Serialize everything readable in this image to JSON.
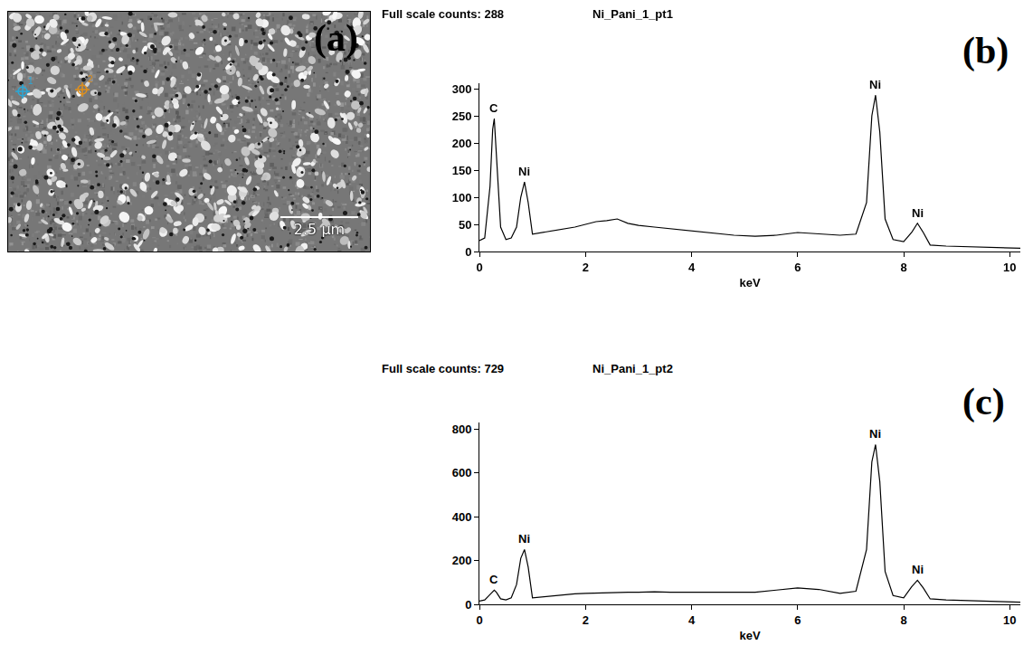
{
  "image_panel": {
    "label": "(a)",
    "scale_bar": "2.5 µm",
    "points": [
      {
        "label": "1",
        "color": "#2aa8d8"
      },
      {
        "label": "2",
        "color": "#e0901c"
      }
    ]
  },
  "chart_data": [
    {
      "type": "line",
      "panel": "(b)",
      "subtitle": "Full scale counts: 288",
      "title": "Ni_Pani_1_pt1",
      "x_label": "keV",
      "color": "#000000",
      "grid": false,
      "x": [
        0,
        0.1,
        0.2,
        0.25,
        0.28,
        0.32,
        0.4,
        0.5,
        0.6,
        0.7,
        0.78,
        0.85,
        0.92,
        1.0,
        1.2,
        1.4,
        1.6,
        1.8,
        2.0,
        2.2,
        2.4,
        2.6,
        2.8,
        3.0,
        3.3,
        3.6,
        4.0,
        4.4,
        4.8,
        5.2,
        5.6,
        6.0,
        6.4,
        6.8,
        7.1,
        7.3,
        7.4,
        7.47,
        7.55,
        7.65,
        7.8,
        8.0,
        8.15,
        8.26,
        8.37,
        8.5,
        8.8,
        9.2,
        9.6,
        10.0,
        10.2
      ],
      "values": [
        20,
        25,
        120,
        225,
        245,
        180,
        45,
        22,
        25,
        45,
        100,
        128,
        90,
        32,
        35,
        38,
        42,
        45,
        50,
        55,
        57,
        60,
        52,
        48,
        45,
        42,
        38,
        33,
        30,
        28,
        30,
        35,
        33,
        30,
        32,
        90,
        250,
        288,
        220,
        60,
        22,
        18,
        35,
        52,
        35,
        12,
        10,
        9,
        8,
        7,
        6
      ],
      "xlim": [
        0,
        10.2
      ],
      "xticks": [
        0,
        2,
        4,
        6,
        8,
        10
      ],
      "ylim": [
        0,
        310
      ],
      "yticks": [
        0,
        50,
        100,
        150,
        200,
        250,
        300
      ],
      "annotations": [
        {
          "text": "C",
          "x": 0.28,
          "y": 245
        },
        {
          "text": "Ni",
          "x": 0.85,
          "y": 128
        },
        {
          "text": "Ni",
          "x": 7.47,
          "y": 288
        },
        {
          "text": "Ni",
          "x": 8.26,
          "y": 52
        }
      ]
    },
    {
      "type": "line",
      "panel": "(c)",
      "subtitle": "Full scale counts: 729",
      "title": "Ni_Pani_1_pt2",
      "x_label": "keV",
      "color": "#000000",
      "grid": false,
      "x": [
        0,
        0.1,
        0.2,
        0.25,
        0.28,
        0.32,
        0.4,
        0.5,
        0.6,
        0.7,
        0.78,
        0.85,
        0.92,
        1.0,
        1.2,
        1.4,
        1.6,
        1.8,
        2.0,
        2.2,
        2.4,
        2.6,
        2.8,
        3.0,
        3.3,
        3.6,
        4.0,
        4.4,
        4.8,
        5.2,
        5.6,
        6.0,
        6.4,
        6.8,
        7.1,
        7.3,
        7.4,
        7.47,
        7.55,
        7.65,
        7.8,
        8.0,
        8.15,
        8.26,
        8.37,
        8.5,
        8.8,
        9.2,
        9.6,
        10.0,
        10.2
      ],
      "values": [
        15,
        20,
        45,
        60,
        65,
        55,
        25,
        20,
        30,
        90,
        210,
        250,
        170,
        30,
        35,
        40,
        45,
        48,
        50,
        52,
        52,
        55,
        55,
        55,
        57,
        55,
        55,
        52,
        55,
        55,
        65,
        75,
        68,
        50,
        60,
        250,
        650,
        729,
        560,
        150,
        40,
        30,
        80,
        110,
        75,
        25,
        20,
        18,
        15,
        12,
        10
      ],
      "xlim": [
        0,
        10.2
      ],
      "xticks": [
        0,
        2,
        4,
        6,
        8,
        10
      ],
      "ylim": [
        0,
        830
      ],
      "yticks": [
        0,
        200,
        400,
        600,
        800
      ],
      "annotations": [
        {
          "text": "C",
          "x": 0.28,
          "y": 65
        },
        {
          "text": "Ni",
          "x": 0.85,
          "y": 250
        },
        {
          "text": "Ni",
          "x": 7.47,
          "y": 729
        },
        {
          "text": "Ni",
          "x": 8.26,
          "y": 110
        }
      ]
    }
  ]
}
